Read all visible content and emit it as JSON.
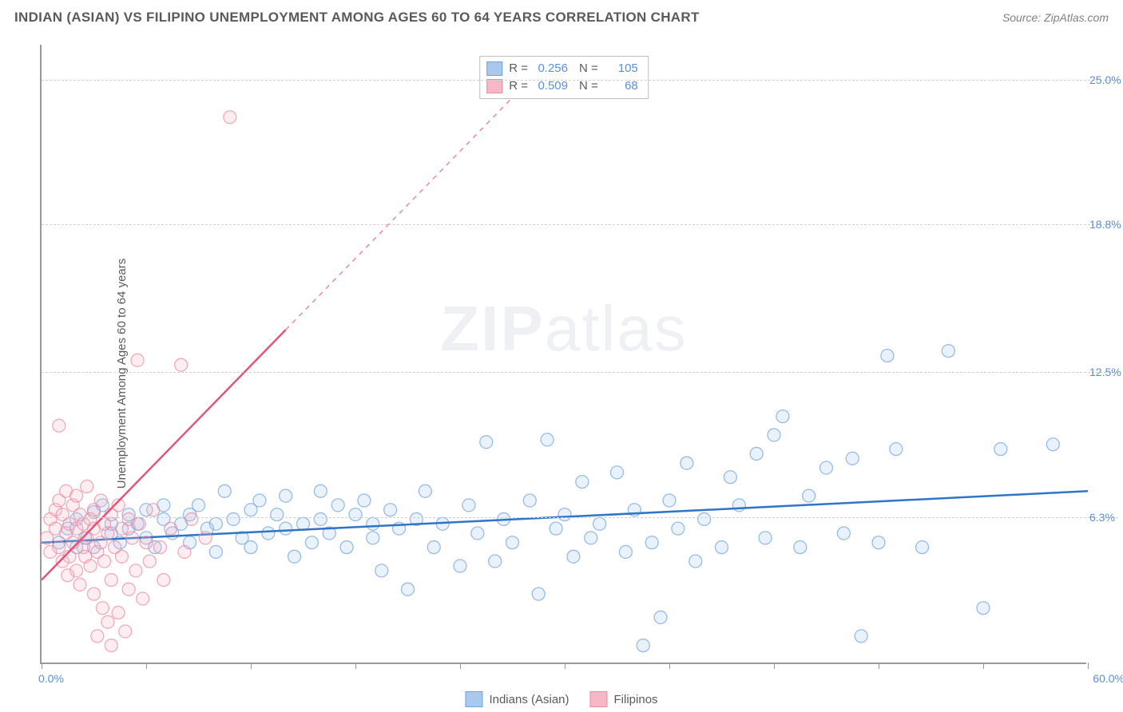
{
  "title": "INDIAN (ASIAN) VS FILIPINO UNEMPLOYMENT AMONG AGES 60 TO 64 YEARS CORRELATION CHART",
  "source": "Source: ZipAtlas.com",
  "watermark_bold": "ZIP",
  "watermark_rest": "atlas",
  "yaxis_label": "Unemployment Among Ages 60 to 64 years",
  "chart": {
    "type": "scatter",
    "background_color": "#ffffff",
    "grid_color": "#d0d0d0",
    "axis_color": "#999999",
    "tick_label_color": "#5b8fd6",
    "xlim": [
      0,
      60
    ],
    "ylim": [
      0,
      26.5
    ],
    "x_axis_labels": {
      "min": "0.0%",
      "max": "60.0%"
    },
    "y_gridlines": [
      6.3,
      12.5,
      18.8,
      25.0
    ],
    "y_grid_labels": [
      "6.3%",
      "12.5%",
      "18.8%",
      "25.0%"
    ],
    "x_ticks": [
      0,
      6,
      12,
      18,
      24,
      30,
      36,
      42,
      48,
      54,
      60
    ],
    "marker_radius": 8,
    "marker_fill_opacity": 0.25,
    "marker_stroke_opacity": 0.7,
    "line_width_solid": 2.5,
    "line_width_dashed": 1.5
  },
  "series": [
    {
      "key": "indians",
      "label": "Indians (Asian)",
      "color_fill": "#a8c8ec",
      "color_stroke": "#6fa3dd",
      "line_color": "#2f74c7",
      "R": "0.256",
      "N": "105",
      "trend": {
        "x1": 0,
        "y1": 5.2,
        "x2": 60,
        "y2": 7.4,
        "solid_until_x": 60
      },
      "points": [
        [
          1,
          5.2
        ],
        [
          1.5,
          5.8
        ],
        [
          2,
          5.0
        ],
        [
          2,
          6.2
        ],
        [
          2.5,
          5.4
        ],
        [
          3,
          6.5
        ],
        [
          3,
          5.0
        ],
        [
          3.5,
          6.8
        ],
        [
          4,
          5.6
        ],
        [
          4,
          6.0
        ],
        [
          4.5,
          5.2
        ],
        [
          5,
          6.4
        ],
        [
          5,
          5.8
        ],
        [
          5.5,
          6.0
        ],
        [
          6,
          5.4
        ],
        [
          6,
          6.6
        ],
        [
          6.5,
          5.0
        ],
        [
          7,
          6.2
        ],
        [
          7,
          6.8
        ],
        [
          7.5,
          5.6
        ],
        [
          8,
          6.0
        ],
        [
          8.5,
          6.4
        ],
        [
          8.5,
          5.2
        ],
        [
          9,
          6.8
        ],
        [
          9.5,
          5.8
        ],
        [
          10,
          6.0
        ],
        [
          10,
          4.8
        ],
        [
          10.5,
          7.4
        ],
        [
          11,
          6.2
        ],
        [
          11.5,
          5.4
        ],
        [
          12,
          6.6
        ],
        [
          12,
          5.0
        ],
        [
          12.5,
          7.0
        ],
        [
          13,
          5.6
        ],
        [
          13.5,
          6.4
        ],
        [
          14,
          5.8
        ],
        [
          14,
          7.2
        ],
        [
          14.5,
          4.6
        ],
        [
          15,
          6.0
        ],
        [
          15.5,
          5.2
        ],
        [
          16,
          7.4
        ],
        [
          16,
          6.2
        ],
        [
          16.5,
          5.6
        ],
        [
          17,
          6.8
        ],
        [
          17.5,
          5.0
        ],
        [
          18,
          6.4
        ],
        [
          18.5,
          7.0
        ],
        [
          19,
          5.4
        ],
        [
          19,
          6.0
        ],
        [
          19.5,
          4.0
        ],
        [
          20,
          6.6
        ],
        [
          20.5,
          5.8
        ],
        [
          21,
          3.2
        ],
        [
          21.5,
          6.2
        ],
        [
          22,
          7.4
        ],
        [
          22.5,
          5.0
        ],
        [
          23,
          6.0
        ],
        [
          24,
          4.2
        ],
        [
          24.5,
          6.8
        ],
        [
          25,
          5.6
        ],
        [
          25.5,
          9.5
        ],
        [
          26,
          4.4
        ],
        [
          26.5,
          6.2
        ],
        [
          27,
          5.2
        ],
        [
          28,
          7.0
        ],
        [
          28.5,
          3.0
        ],
        [
          29,
          9.6
        ],
        [
          29.5,
          5.8
        ],
        [
          30,
          6.4
        ],
        [
          30.5,
          4.6
        ],
        [
          31,
          7.8
        ],
        [
          31.5,
          5.4
        ],
        [
          32,
          6.0
        ],
        [
          33,
          8.2
        ],
        [
          33.5,
          4.8
        ],
        [
          34,
          6.6
        ],
        [
          34.5,
          0.8
        ],
        [
          35,
          5.2
        ],
        [
          35.5,
          2.0
        ],
        [
          36,
          7.0
        ],
        [
          36.5,
          5.8
        ],
        [
          37,
          8.6
        ],
        [
          37.5,
          4.4
        ],
        [
          38,
          6.2
        ],
        [
          39,
          5.0
        ],
        [
          39.5,
          8.0
        ],
        [
          40,
          6.8
        ],
        [
          41,
          9.0
        ],
        [
          41.5,
          5.4
        ],
        [
          42,
          9.8
        ],
        [
          42.5,
          10.6
        ],
        [
          43.5,
          5.0
        ],
        [
          44,
          7.2
        ],
        [
          45,
          8.4
        ],
        [
          46,
          5.6
        ],
        [
          46.5,
          8.8
        ],
        [
          47,
          1.2
        ],
        [
          48,
          5.2
        ],
        [
          48.5,
          13.2
        ],
        [
          49,
          9.2
        ],
        [
          50.5,
          5.0
        ],
        [
          52,
          13.4
        ],
        [
          54,
          2.4
        ],
        [
          55,
          9.2
        ],
        [
          58,
          9.4
        ]
      ]
    },
    {
      "key": "filipinos",
      "label": "Filipinos",
      "color_fill": "#f4b8c6",
      "color_stroke": "#ea8aa3",
      "line_color": "#e0567a",
      "R": "0.509",
      "N": "68",
      "trend": {
        "x1": 0,
        "y1": 3.6,
        "x2": 28,
        "y2": 25.0,
        "solid_until_x": 14
      },
      "points": [
        [
          0.3,
          5.4
        ],
        [
          0.5,
          6.2
        ],
        [
          0.5,
          4.8
        ],
        [
          0.8,
          5.8
        ],
        [
          0.8,
          6.6
        ],
        [
          1.0,
          5.0
        ],
        [
          1.0,
          7.0
        ],
        [
          1.2,
          4.4
        ],
        [
          1.2,
          6.4
        ],
        [
          1.4,
          5.6
        ],
        [
          1.4,
          7.4
        ],
        [
          1.5,
          3.8
        ],
        [
          1.6,
          6.0
        ],
        [
          1.6,
          4.6
        ],
        [
          1.8,
          5.2
        ],
        [
          1.8,
          6.8
        ],
        [
          2.0,
          4.0
        ],
        [
          2.0,
          7.2
        ],
        [
          2.0,
          5.8
        ],
        [
          2.2,
          6.4
        ],
        [
          2.2,
          3.4
        ],
        [
          2.4,
          5.0
        ],
        [
          2.4,
          6.0
        ],
        [
          2.5,
          4.6
        ],
        [
          2.6,
          7.6
        ],
        [
          2.6,
          5.4
        ],
        [
          2.8,
          6.2
        ],
        [
          2.8,
          4.2
        ],
        [
          3.0,
          5.8
        ],
        [
          3.0,
          3.0
        ],
        [
          3.0,
          6.6
        ],
        [
          3.2,
          4.8
        ],
        [
          3.2,
          1.2
        ],
        [
          3.4,
          5.2
        ],
        [
          3.4,
          7.0
        ],
        [
          3.5,
          2.4
        ],
        [
          3.6,
          6.0
        ],
        [
          3.6,
          4.4
        ],
        [
          3.8,
          5.6
        ],
        [
          3.8,
          1.8
        ],
        [
          4.0,
          6.4
        ],
        [
          4.0,
          3.6
        ],
        [
          4.0,
          0.8
        ],
        [
          4.2,
          5.0
        ],
        [
          4.4,
          6.8
        ],
        [
          4.4,
          2.2
        ],
        [
          4.6,
          4.6
        ],
        [
          4.6,
          5.8
        ],
        [
          4.8,
          1.4
        ],
        [
          5.0,
          6.2
        ],
        [
          5.0,
          3.2
        ],
        [
          5.2,
          5.4
        ],
        [
          5.4,
          4.0
        ],
        [
          5.5,
          13.0
        ],
        [
          5.6,
          6.0
        ],
        [
          5.8,
          2.8
        ],
        [
          6.0,
          5.2
        ],
        [
          6.2,
          4.4
        ],
        [
          6.4,
          6.6
        ],
        [
          6.8,
          5.0
        ],
        [
          7.0,
          3.6
        ],
        [
          7.4,
          5.8
        ],
        [
          8.0,
          12.8
        ],
        [
          8.2,
          4.8
        ],
        [
          8.6,
          6.2
        ],
        [
          9.4,
          5.4
        ],
        [
          10.8,
          23.4
        ],
        [
          1.0,
          10.2
        ]
      ]
    }
  ],
  "stats_legend": {
    "R_label": "R =",
    "N_label": "N ="
  },
  "bottom_legend": {
    "items": [
      "Indians (Asian)",
      "Filipinos"
    ]
  }
}
